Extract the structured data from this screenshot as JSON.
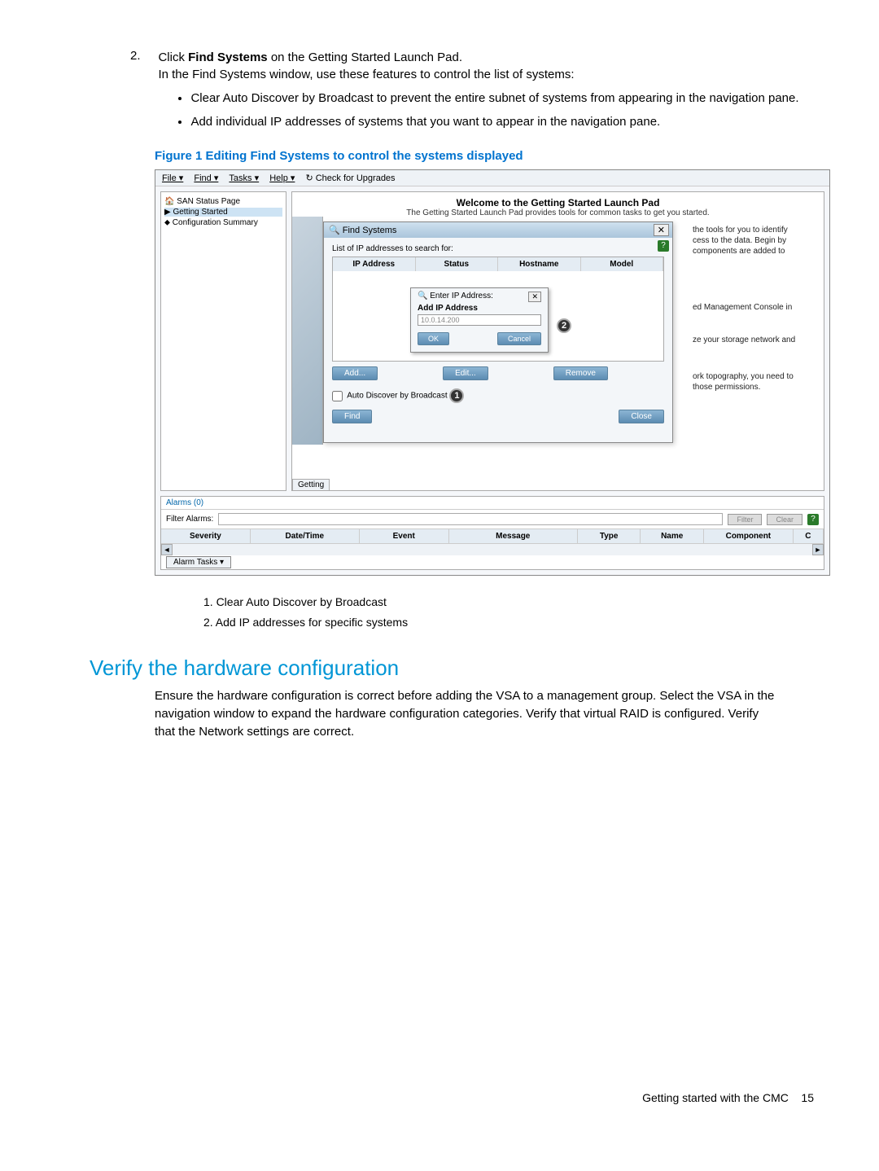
{
  "step": {
    "num": "2.",
    "line1_pre": "Click ",
    "line1_bold": "Find Systems",
    "line1_post": " on the Getting Started Launch Pad.",
    "line2": "In the Find Systems window, use these features to control the list of systems:",
    "bullets": [
      "Clear Auto Discover by Broadcast to prevent the entire subnet of systems from appearing in the navigation pane.",
      "Add individual IP addresses of systems that you want to appear in the navigation pane."
    ]
  },
  "figure_caption": "Figure 1 Editing Find Systems to control the systems displayed",
  "menubar": [
    "File ▾",
    "Find ▾",
    "Tasks ▾",
    "Help ▾",
    "↻ Check for Upgrades"
  ],
  "nav": {
    "items": [
      "SAN Status Page",
      "Getting Started",
      "Configuration Summary"
    ],
    "selected": "Getting Started"
  },
  "welcome": {
    "title": "Welcome to the Getting Started Launch Pad",
    "sub": "The Getting Started Launch Pad provides tools for common tasks to get you started."
  },
  "partial": {
    "p1": "the tools for you to identify\ncess to the data. Begin by\n components are added to",
    "p2": "ed Management Console in",
    "p3": "ze your storage network and",
    "p4": "ork topography, you need to\nthose permissions."
  },
  "find_dialog": {
    "title": "Find Systems",
    "list_label": "List of IP addresses to search for:",
    "cols": [
      "IP Address",
      "Status",
      "Hostname",
      "Model"
    ],
    "add": "Add...",
    "edit": "Edit...",
    "remove": "Remove",
    "auto_label": "Auto Discover by Broadcast",
    "find": "Find",
    "close": "Close"
  },
  "enter_ip": {
    "title": "Enter IP Address:",
    "label": "Add IP Address",
    "value": "10.0.14.200",
    "ok": "OK",
    "cancel": "Cancel"
  },
  "getting_tab": "Getting",
  "alarms": {
    "hdr": "Alarms (0)",
    "filter_label": "Filter Alarms:",
    "filter_btn": "Filter",
    "clear_btn": "Clear",
    "cols": [
      "Severity",
      "Date/Time",
      "Event",
      "Message",
      "Type",
      "Name",
      "Component",
      "C"
    ],
    "tasks": "Alarm Tasks ▾"
  },
  "legend": {
    "l1": "1. Clear Auto Discover by Broadcast",
    "l2": "2. Add IP addresses for specific systems"
  },
  "section": {
    "h": "Verify the hardware configuration",
    "p": "Ensure the hardware configuration is correct before adding the VSA to a management group. Select the VSA in the navigation window to expand the hardware configuration categories. Verify that virtual RAID is configured. Verify that the Network settings are correct."
  },
  "footer": {
    "text": "Getting started with the CMC",
    "page": "15"
  }
}
